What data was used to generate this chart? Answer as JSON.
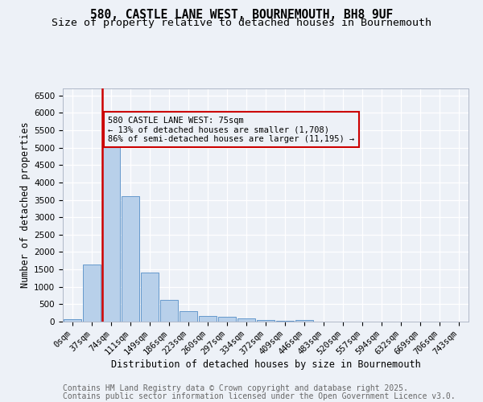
{
  "title_line1": "580, CASTLE LANE WEST, BOURNEMOUTH, BH8 9UF",
  "title_line2": "Size of property relative to detached houses in Bournemouth",
  "xlabel": "Distribution of detached houses by size in Bournemouth",
  "ylabel": "Number of detached properties",
  "categories": [
    "0sqm",
    "37sqm",
    "74sqm",
    "111sqm",
    "149sqm",
    "186sqm",
    "223sqm",
    "260sqm",
    "297sqm",
    "334sqm",
    "372sqm",
    "409sqm",
    "446sqm",
    "483sqm",
    "520sqm",
    "557sqm",
    "594sqm",
    "632sqm",
    "669sqm",
    "706sqm",
    "743sqm"
  ],
  "bar_values": [
    75,
    1650,
    5100,
    3600,
    1420,
    620,
    310,
    165,
    130,
    95,
    45,
    20,
    55,
    0,
    0,
    0,
    0,
    0,
    0,
    0,
    0
  ],
  "bar_color": "#b8d0ea",
  "bar_edge_color": "#6699cc",
  "reference_bar_index": 2,
  "reference_line_color": "#cc0000",
  "ylim": [
    0,
    6700
  ],
  "yticks": [
    0,
    500,
    1000,
    1500,
    2000,
    2500,
    3000,
    3500,
    4000,
    4500,
    5000,
    5500,
    6000,
    6500
  ],
  "annotation_text": "580 CASTLE LANE WEST: 75sqm\n← 13% of detached houses are smaller (1,708)\n86% of semi-detached houses are larger (11,195) →",
  "annotation_border_color": "#cc0000",
  "footnote_line1": "Contains HM Land Registry data © Crown copyright and database right 2025.",
  "footnote_line2": "Contains public sector information licensed under the Open Government Licence v3.0.",
  "bg_color": "#edf1f7",
  "grid_color": "#ffffff",
  "title_fontsize": 10.5,
  "subtitle_fontsize": 9.5,
  "tick_fontsize": 7.5,
  "footnote_fontsize": 7
}
